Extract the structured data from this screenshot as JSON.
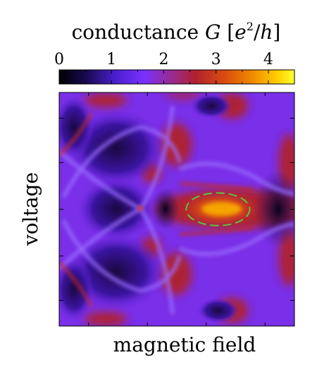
{
  "chart_data": {
    "type": "heatmap",
    "colorbar": {
      "label_prefix": "conductance ",
      "label_symbol": "G",
      "label_unit_open": " [",
      "label_unit_e": "e",
      "label_unit_exp": "2",
      "label_unit_rest": "/",
      "label_unit_h": "h",
      "label_unit_close": "]",
      "ticks": [
        "0",
        "1",
        "2",
        "3",
        "4"
      ],
      "tick_values": [
        0,
        1,
        2,
        3,
        4
      ],
      "range": [
        0,
        4.5
      ],
      "colormap": [
        "#000000",
        "#1a0a55",
        "#4b1fd0",
        "#7a30ff",
        "#9a2a90",
        "#b02030",
        "#d84a10",
        "#f08a00",
        "#ffd000",
        "#ffff30"
      ]
    },
    "xlabel": "magnetic field",
    "ylabel": "voltage",
    "xlim": [
      -1,
      1
    ],
    "ylim": [
      -1,
      1
    ],
    "background_level": 1.6,
    "features": [
      {
        "name": "crossing-lines",
        "shape": "x-crossings",
        "level": 1.2
      },
      {
        "name": "bright-horizontal-band",
        "shape": "ellipse",
        "cx": 0.35,
        "cy": 0.0,
        "level": 3.9
      },
      {
        "name": "dark-lobes",
        "shape": "diamond",
        "level": 0.3
      }
    ],
    "annotation": {
      "shape": "ellipse",
      "style": "dashed",
      "color": "#5ec040",
      "x_range": [
        0.08,
        0.62
      ],
      "y_range": [
        -0.14,
        0.14
      ]
    }
  }
}
